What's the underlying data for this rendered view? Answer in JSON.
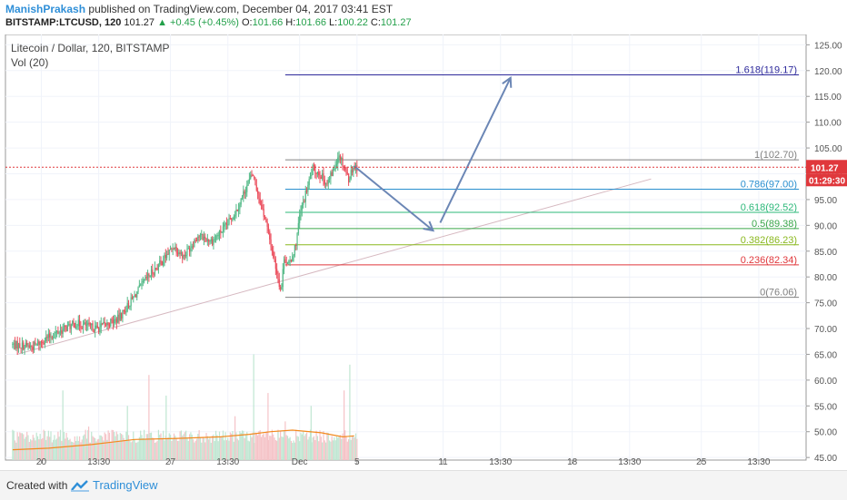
{
  "header": {
    "author": "ManishPrakash",
    "published": "published on TradingView.com, December 04, 2017 03:41 EST",
    "symbol": "BITSTAMP:LTCUSD, 120",
    "last": "101.27",
    "change": "▲ +0.45 (+0.45%)",
    "o_label": "O:",
    "o_value": "101.66",
    "h_label": "H:",
    "h_value": "101.66",
    "l_label": "L:",
    "l_value": "100.22",
    "c_label": "C:",
    "c_value": "101.27"
  },
  "footer": {
    "created": "Created with",
    "brand": "TradingView"
  },
  "colors": {
    "up": "#53b987",
    "down": "#eb4d5c",
    "accent": "#2f8fd8"
  },
  "chart_data": {
    "type": "candlestick",
    "legend": [
      "Litecoin / Dollar, 120, BITSTAMP",
      "Vol (20)"
    ],
    "y_ticks": [
      "125.00",
      "120.00",
      "115.00",
      "110.00",
      "105.00",
      "100.00",
      "95.00",
      "90.00",
      "85.00",
      "80.00",
      "75.00",
      "70.00",
      "65.00",
      "60.00",
      "55.00",
      "50.00",
      "45.00"
    ],
    "y_tick_values": [
      125,
      120,
      115,
      110,
      105,
      100,
      95,
      90,
      85,
      80,
      75,
      70,
      65,
      60,
      55,
      50,
      45
    ],
    "ylim": [
      44.5,
      127
    ],
    "x_ticks": [
      "20",
      "13:30",
      "27",
      "13:30",
      "Dec",
      "5",
      "11",
      "13:30",
      "18",
      "13:30",
      "25",
      "13:30"
    ],
    "x_tick_time": [
      2.5,
      6.5,
      11.5,
      15.5,
      20.5,
      24.5,
      30.5,
      34.5,
      39.5,
      43.5,
      48.5,
      52.5
    ],
    "x_range": [
      0,
      55.8
    ],
    "last_price": "101.27",
    "last_value": 101.27,
    "countdown": "01:29:30",
    "fib_levels": [
      {
        "label": "1.618(119.17)",
        "value": 119.17,
        "color": "#2e2a9c"
      },
      {
        "label": "1(102.70)",
        "value": 102.7,
        "color": "#808080"
      },
      {
        "label": "0.786(97.00)",
        "value": 97.0,
        "color": "#2a8fcf"
      },
      {
        "label": "0.618(92.52)",
        "value": 92.52,
        "color": "#2db87a"
      },
      {
        "label": "0.5(89.38)",
        "value": 89.38,
        "color": "#3aa64a"
      },
      {
        "label": "0.382(86.23)",
        "value": 86.23,
        "color": "#8ab81e"
      },
      {
        "label": "0.236(82.34)",
        "value": 82.34,
        "color": "#e0383c"
      },
      {
        "label": "0(76.06)",
        "value": 76.06,
        "color": "#808080"
      }
    ],
    "fib_t_range": [
      19.5,
      55.3
    ],
    "trendline": [
      {
        "t": 0.8,
        "p": 65.0
      },
      {
        "t": 45.0,
        "p": 99.0
      }
    ],
    "projection_arrows": [
      {
        "from": {
          "t": 24.3,
          "p": 101.5
        },
        "to": {
          "t": 29.8,
          "p": 89.0
        }
      },
      {
        "from": {
          "t": 30.3,
          "p": 90.5
        },
        "to": {
          "t": 35.2,
          "p": 118.6
        }
      }
    ],
    "series": [
      {
        "name": "LTCUSD 2h",
        "t0": 0.5,
        "t1": 24.5,
        "points": [
          [
            0,
            67
          ],
          [
            2,
            66.5
          ],
          [
            3.5,
            69
          ],
          [
            5,
            71
          ],
          [
            6.5,
            70
          ],
          [
            8,
            72
          ],
          [
            9,
            76
          ],
          [
            10,
            80
          ],
          [
            11,
            83
          ],
          [
            11.8,
            86
          ],
          [
            12.5,
            84
          ],
          [
            13.5,
            88
          ],
          [
            14.5,
            87
          ],
          [
            15.5,
            90
          ],
          [
            16.2,
            93
          ],
          [
            16.8,
            97
          ],
          [
            17.3,
            100
          ],
          [
            17.7,
            96
          ],
          [
            18.2,
            91
          ],
          [
            18.6,
            86
          ],
          [
            19,
            81
          ],
          [
            19.3,
            77
          ],
          [
            19.5,
            84
          ],
          [
            19.8,
            82
          ],
          [
            20.3,
            86
          ],
          [
            20.6,
            92
          ],
          [
            21,
            96
          ],
          [
            21.5,
            101
          ],
          [
            22,
            100
          ],
          [
            22.5,
            98
          ],
          [
            23,
            101
          ],
          [
            23.3,
            104
          ],
          [
            23.6,
            102
          ],
          [
            24,
            99
          ],
          [
            24.3,
            101.3
          ]
        ],
        "amp": 1.6,
        "vol_base": 47.8,
        "vol_amp": 2.6
      }
    ],
    "vol_spikes": [
      [
        4,
        58
      ],
      [
        5.8,
        51
      ],
      [
        8.5,
        55
      ],
      [
        10,
        61
      ],
      [
        11.2,
        57
      ],
      [
        16,
        53
      ],
      [
        17.3,
        65
      ],
      [
        18.3,
        57.5
      ],
      [
        19,
        50
      ],
      [
        19.5,
        52
      ],
      [
        21.3,
        55
      ],
      [
        23.6,
        58
      ],
      [
        24,
        63
      ]
    ],
    "vol_ma": [
      [
        0.5,
        46.5
      ],
      [
        3,
        46.8
      ],
      [
        6,
        47.5
      ],
      [
        9,
        48.5
      ],
      [
        12,
        48.7
      ],
      [
        15,
        49
      ],
      [
        17,
        49.5
      ],
      [
        18.5,
        50
      ],
      [
        20,
        50.3
      ],
      [
        22,
        49.8
      ],
      [
        23.5,
        49
      ],
      [
        24.3,
        49.2
      ]
    ]
  }
}
